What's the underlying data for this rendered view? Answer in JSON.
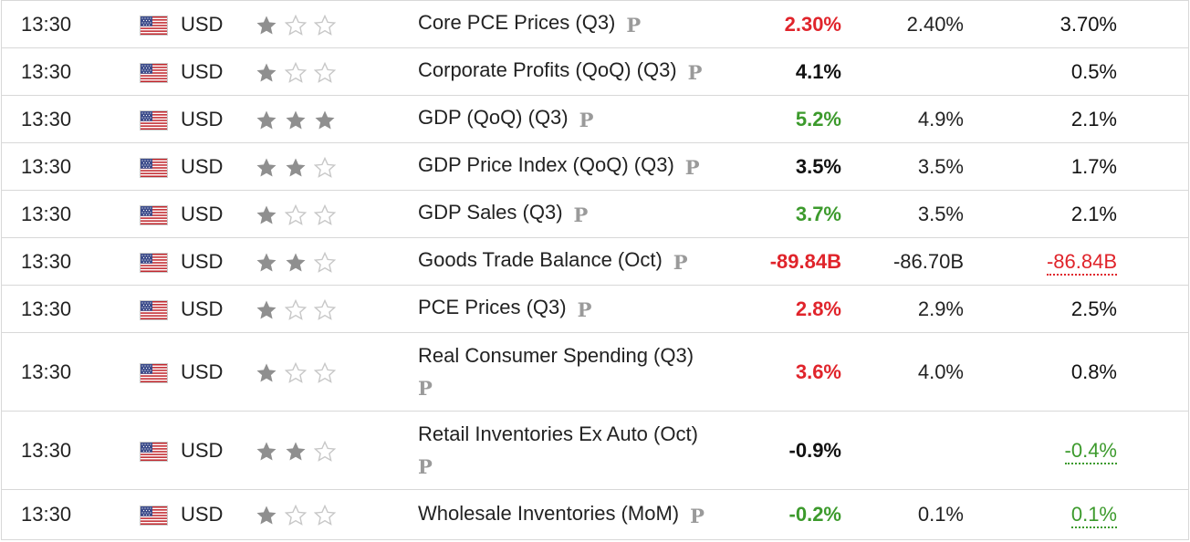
{
  "rows": [
    {
      "time": "13:30",
      "currency": "USD",
      "importance": 1,
      "event": "Core PCE Prices (Q3)",
      "badge": "P",
      "actual": "2.30%",
      "actual_color": "red",
      "forecast": "2.40%",
      "previous": "3.70%",
      "previous_color": "black",
      "revised": false,
      "wrap": false
    },
    {
      "time": "13:30",
      "currency": "USD",
      "importance": 1,
      "event": "Corporate Profits (QoQ) (Q3)",
      "badge": "P",
      "actual": "4.1%",
      "actual_color": "black",
      "forecast": "",
      "previous": "0.5%",
      "previous_color": "black",
      "revised": false,
      "wrap": false
    },
    {
      "time": "13:30",
      "currency": "USD",
      "importance": 3,
      "event": "GDP (QoQ) (Q3)",
      "badge": "P",
      "actual": "5.2%",
      "actual_color": "green",
      "forecast": "4.9%",
      "previous": "2.1%",
      "previous_color": "black",
      "revised": false,
      "wrap": false
    },
    {
      "time": "13:30",
      "currency": "USD",
      "importance": 2,
      "event": "GDP Price Index (QoQ) (Q3)",
      "badge": "P",
      "actual": "3.5%",
      "actual_color": "black",
      "forecast": "3.5%",
      "previous": "1.7%",
      "previous_color": "black",
      "revised": false,
      "wrap": false
    },
    {
      "time": "13:30",
      "currency": "USD",
      "importance": 1,
      "event": "GDP Sales (Q3)",
      "badge": "P",
      "actual": "3.7%",
      "actual_color": "green",
      "forecast": "3.5%",
      "previous": "2.1%",
      "previous_color": "black",
      "revised": false,
      "wrap": false
    },
    {
      "time": "13:30",
      "currency": "USD",
      "importance": 2,
      "event": "Goods Trade Balance (Oct)",
      "badge": "P",
      "actual": "-89.84B",
      "actual_color": "red",
      "forecast": "-86.70B",
      "previous": "-86.84B",
      "previous_color": "red",
      "revised": true,
      "wrap": false
    },
    {
      "time": "13:30",
      "currency": "USD",
      "importance": 1,
      "event": "PCE Prices (Q3)",
      "badge": "P",
      "actual": "2.8%",
      "actual_color": "red",
      "forecast": "2.9%",
      "previous": "2.5%",
      "previous_color": "black",
      "revised": false,
      "wrap": false
    },
    {
      "time": "13:30",
      "currency": "USD",
      "importance": 1,
      "event": "Real Consumer Spending (Q3)",
      "badge": "P",
      "actual": "3.6%",
      "actual_color": "red",
      "forecast": "4.0%",
      "previous": "0.8%",
      "previous_color": "black",
      "revised": false,
      "wrap": true
    },
    {
      "time": "13:30",
      "currency": "USD",
      "importance": 2,
      "event": "Retail Inventories Ex Auto (Oct)",
      "badge": "P",
      "actual": "-0.9%",
      "actual_color": "black",
      "forecast": "",
      "previous": "-0.4%",
      "previous_color": "green",
      "revised": true,
      "wrap": true
    },
    {
      "time": "13:30",
      "currency": "USD",
      "importance": 1,
      "event": "Wholesale Inventories (MoM)",
      "badge": "P",
      "actual": "-0.2%",
      "actual_color": "green",
      "forecast": "0.1%",
      "previous": "0.1%",
      "previous_color": "green",
      "revised": true,
      "wrap": false
    }
  ],
  "colors": {
    "red": "#e0242b",
    "green": "#3c9a2c",
    "star_filled": "#8f8f8f",
    "star_empty": "#c7c7c7",
    "border": "#d8d8d8"
  },
  "icons": {
    "flag": "us-flag-icon",
    "star": "star-icon",
    "badge": "preliminary-badge-icon"
  }
}
